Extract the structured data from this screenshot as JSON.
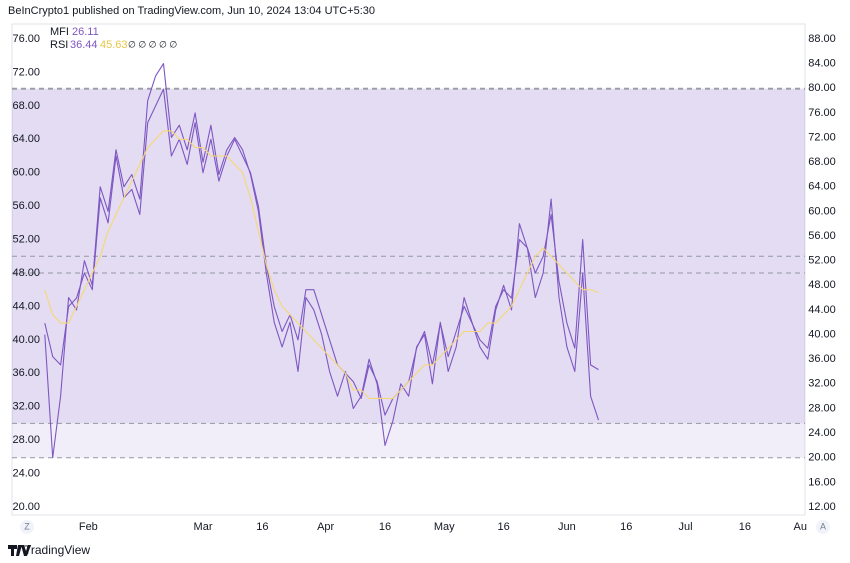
{
  "header": "BeInCrypto1 published on TradingView.com, Jun 10, 2024 13:04 UTC+5:30",
  "footer": "TradingView",
  "buttons": [
    "Z",
    "A"
  ],
  "legend": {
    "mfi_label": "MFI",
    "rsi_label": "RSI",
    "rsi_symbols": "∅ ∅ ∅ ∅ ∅"
  },
  "chart_data": {
    "type": "line",
    "x": [
      21,
      23,
      25,
      27,
      29,
      31,
      33,
      35,
      37,
      39,
      41,
      43,
      45,
      47,
      49,
      51,
      53,
      55,
      57,
      59,
      61,
      63,
      65,
      67,
      69,
      71,
      73,
      75,
      77,
      79,
      81,
      83,
      85,
      87,
      89,
      91,
      93,
      95,
      97,
      99,
      101,
      103,
      105,
      107,
      109,
      111,
      113,
      115,
      117,
      119,
      121,
      123,
      125,
      127,
      129,
      131,
      133,
      135,
      137,
      139,
      141,
      143,
      145,
      147,
      149,
      151,
      153,
      155,
      157,
      159,
      161
    ],
    "xlim": [
      12.7,
      213.2
    ],
    "xticks": [
      {
        "value": 32,
        "label": "Feb"
      },
      {
        "value": 61,
        "label": "Mar"
      },
      {
        "value": 76,
        "label": "16"
      },
      {
        "value": 92,
        "label": "Apr"
      },
      {
        "value": 107,
        "label": "16"
      },
      {
        "value": 122,
        "label": "May"
      },
      {
        "value": 137,
        "label": "16"
      },
      {
        "value": 153,
        "label": "Jun"
      },
      {
        "value": 168,
        "label": "16"
      },
      {
        "value": 183,
        "label": "Jul"
      },
      {
        "value": 198,
        "label": "16"
      },
      {
        "value": 212,
        "label": "Au"
      }
    ],
    "ylim": [
      20,
      76
    ],
    "yticks": [
      {
        "value": 20,
        "label": "20.00"
      },
      {
        "value": 24,
        "label": "24.00"
      },
      {
        "value": 28,
        "label": "28.00"
      },
      {
        "value": 32,
        "label": "32.00"
      },
      {
        "value": 36,
        "label": "36.00"
      },
      {
        "value": 40,
        "label": "40.00"
      },
      {
        "value": 44,
        "label": "44.00"
      },
      {
        "value": 48,
        "label": "48.00"
      },
      {
        "value": 52,
        "label": "52.00"
      },
      {
        "value": 56,
        "label": "56.00"
      },
      {
        "value": 60,
        "label": "60.00"
      },
      {
        "value": 64,
        "label": "64.00"
      },
      {
        "value": 68,
        "label": "68.00"
      },
      {
        "value": 72,
        "label": "72.00"
      },
      {
        "value": 76,
        "label": "76.00"
      }
    ],
    "y2lim": [
      12,
      88
    ],
    "y2ticks": [
      {
        "value": 12,
        "label": "12.00"
      },
      {
        "value": 16,
        "label": "16.00"
      },
      {
        "value": 20,
        "label": "20.00"
      },
      {
        "value": 24,
        "label": "24.00"
      },
      {
        "value": 28,
        "label": "28.00"
      },
      {
        "value": 32,
        "label": "32.00"
      },
      {
        "value": 36,
        "label": "36.00"
      },
      {
        "value": 40,
        "label": "40.00"
      },
      {
        "value": 44,
        "label": "44.00"
      },
      {
        "value": 48,
        "label": "48.00"
      },
      {
        "value": 52,
        "label": "52.00"
      },
      {
        "value": 56,
        "label": "56.00"
      },
      {
        "value": 60,
        "label": "60.00"
      },
      {
        "value": 64,
        "label": "64.00"
      },
      {
        "value": 68,
        "label": "68.00"
      },
      {
        "value": 72,
        "label": "72.00"
      },
      {
        "value": 76,
        "label": "76.00"
      },
      {
        "value": 80,
        "label": "80.00"
      },
      {
        "value": 84,
        "label": "84.00"
      },
      {
        "value": 88,
        "label": "88.00"
      }
    ],
    "bands": {
      "y": [
        30,
        50,
        70
      ],
      "y2": [
        20,
        50,
        80
      ],
      "color": "#7e57c2"
    },
    "series": [
      {
        "name": "MFI",
        "color": "#7e57c2",
        "axis": "y2",
        "values": [
          40,
          20,
          30,
          46,
          44,
          52,
          48,
          64,
          60,
          70,
          64,
          66,
          62,
          78,
          82,
          84,
          72,
          74,
          70,
          76,
          68,
          74,
          66,
          70,
          72,
          70,
          66,
          60,
          50,
          42,
          38,
          42,
          34,
          46,
          44,
          40,
          34,
          30,
          34,
          28,
          30,
          36,
          32,
          22,
          26,
          32,
          30,
          38,
          40,
          32,
          42,
          34,
          38,
          46,
          42,
          38,
          36,
          44,
          48,
          44,
          58,
          54,
          46,
          50,
          62,
          46,
          38,
          34,
          50,
          30,
          26.11
        ]
      },
      {
        "name": "RSI",
        "color": "#7e57c2",
        "values": [
          42,
          38,
          37,
          44,
          45,
          48,
          46,
          57,
          54,
          62,
          57,
          58,
          55,
          66,
          68,
          70,
          62,
          64,
          61,
          66,
          60,
          64,
          59,
          62,
          64,
          62,
          60,
          56,
          49,
          44,
          41,
          43,
          40,
          46,
          46,
          43,
          40,
          37,
          36,
          35,
          33,
          37,
          35,
          31,
          33,
          34,
          35,
          39,
          41,
          37,
          42,
          38,
          41,
          44,
          42,
          40,
          39,
          44,
          46,
          45,
          52,
          51,
          48,
          50,
          55,
          47,
          42,
          39,
          52,
          37,
          36.44
        ]
      },
      {
        "color": "#f7d774",
        "values": [
          46,
          43,
          42,
          42,
          44,
          46,
          48,
          50,
          53,
          55,
          57,
          59,
          61,
          63,
          64,
          65,
          65,
          64,
          64,
          63,
          63,
          62,
          62,
          62,
          61,
          60,
          57,
          53,
          49,
          46,
          44,
          43,
          42,
          41,
          40,
          39,
          38,
          37,
          36,
          34,
          34,
          33,
          33,
          33,
          33,
          34,
          35,
          36,
          37,
          37,
          38,
          39,
          40,
          41,
          41,
          41,
          42,
          42,
          43,
          44,
          46,
          48,
          50,
          51,
          50,
          49,
          48,
          47,
          46,
          46,
          45.63
        ]
      }
    ]
  }
}
